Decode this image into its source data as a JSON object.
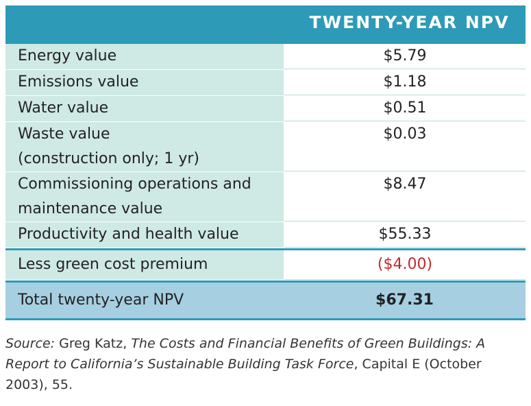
{
  "table": {
    "header": "TWENTY-YEAR NPV",
    "rows": [
      {
        "label": "Energy value",
        "value": "$5.79"
      },
      {
        "label": "Emissions value",
        "value": "$1.18"
      },
      {
        "label": "Water value",
        "value": "$0.51"
      },
      {
        "label_line1": "Waste value",
        "label_line2": "(construction only; 1 yr)",
        "value": "$0.03"
      },
      {
        "label_line1": "Commissioning operations and",
        "label_line2": "maintenance value",
        "value": "$8.47"
      },
      {
        "label": "Productivity and health value",
        "value": "$55.33"
      }
    ],
    "less": {
      "label": "Less green cost premium",
      "value": "($4.00)"
    },
    "total": {
      "label": "Total twenty-year NPV",
      "value": "$67.31"
    }
  },
  "source": {
    "prefix": "Source:",
    "author": "Greg Katz,",
    "title": "The Costs and Financial Benefits of Green Buildings: A Report to California’s Sustainable Building Task Force",
    "suffix": ", Capital E (October 2003), 55."
  },
  "colors": {
    "header_bg": "#2d9ab8",
    "label_bg": "#cfe9e4",
    "total_bg": "#a6cfe2",
    "negative_text": "#c0282d"
  }
}
